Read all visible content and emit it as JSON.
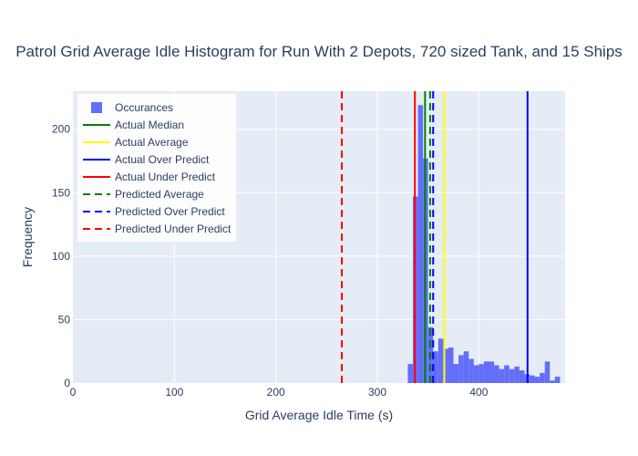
{
  "chart_data": {
    "type": "bar",
    "title": "Patrol Grid Average Idle Histogram for Run With 2 Depots, 720 sized Tank, and 15 Ships",
    "xlabel": "Grid Average Idle Time (s)",
    "ylabel": "Frequency",
    "xlim": [
      0,
      485
    ],
    "ylim": [
      0,
      230
    ],
    "xticks": [
      0,
      100,
      200,
      300,
      400
    ],
    "yticks": [
      0,
      50,
      100,
      150,
      200
    ],
    "grid": true,
    "legend_position": "top-left",
    "histogram": {
      "name": "Occurances",
      "color": "#636efa",
      "bin_width": 5,
      "bins": [
        {
          "x0": 330,
          "count": 15
        },
        {
          "x0": 335,
          "count": 147
        },
        {
          "x0": 340,
          "count": 219
        },
        {
          "x0": 345,
          "count": 177
        },
        {
          "x0": 350,
          "count": 44
        },
        {
          "x0": 355,
          "count": 25
        },
        {
          "x0": 360,
          "count": 35
        },
        {
          "x0": 365,
          "count": 27
        },
        {
          "x0": 370,
          "count": 28
        },
        {
          "x0": 375,
          "count": 15
        },
        {
          "x0": 380,
          "count": 22
        },
        {
          "x0": 385,
          "count": 25
        },
        {
          "x0": 390,
          "count": 19
        },
        {
          "x0": 395,
          "count": 14
        },
        {
          "x0": 400,
          "count": 15
        },
        {
          "x0": 405,
          "count": 17
        },
        {
          "x0": 410,
          "count": 17
        },
        {
          "x0": 415,
          "count": 14
        },
        {
          "x0": 420,
          "count": 11
        },
        {
          "x0": 425,
          "count": 14
        },
        {
          "x0": 430,
          "count": 11
        },
        {
          "x0": 435,
          "count": 13
        },
        {
          "x0": 440,
          "count": 10
        },
        {
          "x0": 445,
          "count": 7
        },
        {
          "x0": 450,
          "count": 6
        },
        {
          "x0": 455,
          "count": 5
        },
        {
          "x0": 460,
          "count": 8
        },
        {
          "x0": 465,
          "count": 17
        },
        {
          "x0": 470,
          "count": 2
        },
        {
          "x0": 475,
          "count": 5
        }
      ]
    },
    "lines": [
      {
        "name": "Actual Median",
        "x": 347,
        "color": "#008000",
        "dash": "solid"
      },
      {
        "name": "Actual Average",
        "x": 366,
        "color": "#ffff00",
        "dash": "solid"
      },
      {
        "name": "Actual Over Predict",
        "x": 448,
        "color": "#0000ff",
        "dash": "solid"
      },
      {
        "name": "Actual Under Predict",
        "x": 337,
        "color": "#ff0000",
        "dash": "solid"
      },
      {
        "name": "Predicted Average",
        "x": 352,
        "color": "#008000",
        "dash": "dash"
      },
      {
        "name": "Predicted Over Predict",
        "x": 355,
        "color": "#0000ff",
        "dash": "dash"
      },
      {
        "name": "Predicted Under Predict",
        "x": 265,
        "color": "#ff0000",
        "dash": "dash"
      }
    ]
  }
}
